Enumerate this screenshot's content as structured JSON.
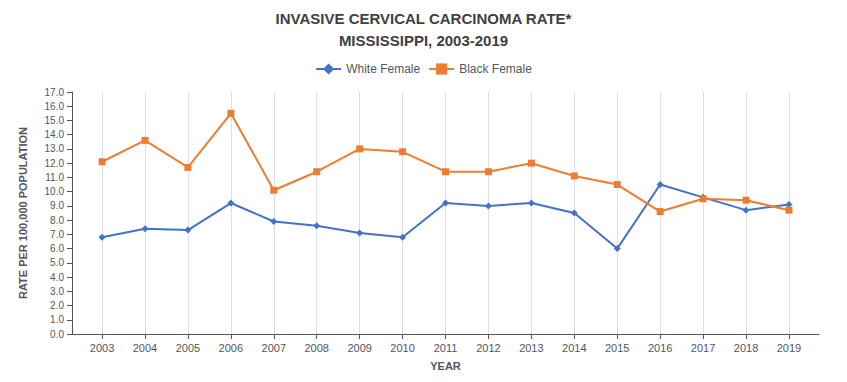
{
  "chart_data": {
    "type": "line",
    "title": "INVASIVE CERVICAL CARCINOMA RATE*",
    "subtitle": "MISSISSIPPI, 2003-2019",
    "x_label": "YEAR",
    "y_label": "RATE PER 100,000 POPULATION",
    "x": [
      2003,
      2004,
      2005,
      2006,
      2007,
      2008,
      2009,
      2010,
      2011,
      2012,
      2013,
      2014,
      2015,
      2016,
      2017,
      2018,
      2019
    ],
    "series": [
      {
        "name": "White Female",
        "color": "#4472c4",
        "marker": "diamond",
        "values": [
          6.8,
          7.4,
          7.3,
          9.2,
          7.9,
          7.6,
          7.1,
          6.8,
          9.2,
          9.0,
          9.2,
          8.5,
          6.0,
          10.5,
          9.6,
          8.7,
          9.1
        ]
      },
      {
        "name": "Black Female",
        "color": "#ed7d31",
        "marker": "square",
        "values": [
          12.1,
          13.6,
          11.7,
          15.5,
          10.1,
          11.4,
          13.0,
          12.8,
          11.4,
          11.4,
          12.0,
          11.1,
          10.5,
          8.6,
          9.5,
          9.4,
          8.7
        ]
      }
    ],
    "xlim": [
      2002.3,
      2019.7
    ],
    "xticks": [
      2003,
      2004,
      2005,
      2006,
      2007,
      2008,
      2009,
      2010,
      2011,
      2012,
      2013,
      2014,
      2015,
      2016,
      2017,
      2018,
      2019
    ],
    "ylim": [
      0.0,
      17.0
    ],
    "yticks": [
      {
        "value": 0,
        "label": "0.0"
      },
      {
        "value": 1,
        "label": "1.0"
      },
      {
        "value": 2,
        "label": "2.0"
      },
      {
        "value": 3,
        "label": "3.0"
      },
      {
        "value": 4,
        "label": "4.0"
      },
      {
        "value": 5,
        "label": "5.0"
      },
      {
        "value": 6,
        "label": "6.0"
      },
      {
        "value": 7,
        "label": "7.0"
      },
      {
        "value": 8,
        "label": "8.0"
      },
      {
        "value": 9,
        "label": "9.0"
      },
      {
        "value": 10,
        "label": "10.0"
      },
      {
        "value": 11,
        "label": "11.0"
      },
      {
        "value": 12,
        "label": "12.0"
      },
      {
        "value": 13,
        "label": "13.0"
      },
      {
        "value": 14,
        "label": "14.0"
      },
      {
        "value": 15,
        "label": "15.0"
      },
      {
        "value": 16,
        "label": "16.0"
      },
      {
        "value": 17,
        "label": "17.0"
      }
    ],
    "grid": "x",
    "legend": "top"
  }
}
